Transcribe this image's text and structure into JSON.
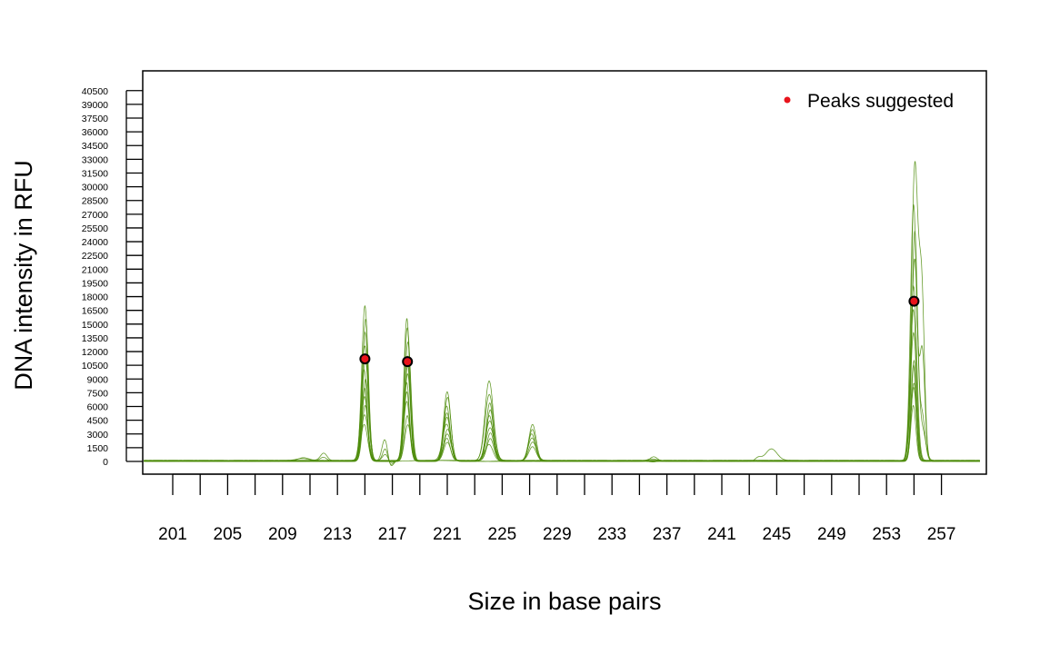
{
  "chart_data": {
    "type": "line",
    "title": "",
    "xlabel": "Size in base pairs",
    "ylabel": "DNA intensity in RFU",
    "xlim": [
      198,
      260
    ],
    "ylim": [
      0,
      40500
    ],
    "x_ticks": [
      201,
      205,
      209,
      213,
      217,
      221,
      225,
      229,
      233,
      237,
      241,
      245,
      249,
      253,
      257
    ],
    "y_tick_step": 1500,
    "x_minor_tick_step": 2,
    "grid": false,
    "legend": {
      "position": "top-right",
      "entries": [
        "Peaks suggested"
      ]
    },
    "colors": {
      "traces": "#4d8c0a",
      "peak_marker": "#e8141c",
      "marker_edge": "#000000"
    },
    "trace_peaks": [
      {
        "x": 215.0,
        "heights": [
          17000,
          15500,
          14000,
          12500,
          11000,
          10000,
          9000,
          8000,
          7000,
          6000,
          5000,
          4000
        ],
        "width": 0.22
      },
      {
        "x": 218.1,
        "heights": [
          15500,
          14500,
          13000,
          11500,
          10500,
          9500,
          8500,
          7500,
          6500,
          5000,
          4000
        ],
        "width": 0.22
      },
      {
        "x": 221.0,
        "heights": [
          7600,
          7000,
          6000,
          5200,
          4700,
          4000,
          3500,
          3000,
          2500,
          2000
        ],
        "width": 0.25
      },
      {
        "x": 224.1,
        "heights": [
          8700,
          7200,
          6300,
          5600,
          5000,
          4400,
          3600,
          3000,
          2400,
          1800
        ],
        "width": 0.27
      },
      {
        "x": 227.2,
        "heights": [
          4000,
          3500,
          3000,
          2500,
          2000,
          1500
        ],
        "width": 0.26
      },
      {
        "x": 216.5,
        "heights": [
          2600,
          1500,
          800
        ],
        "width": 0.2
      },
      {
        "x": 210.5,
        "heights": [
          300,
          200
        ],
        "width": 0.4
      },
      {
        "x": 212.0,
        "heights": [
          800,
          400
        ],
        "width": 0.25
      },
      {
        "x": 236.0,
        "heights": [
          900,
          500
        ],
        "width": 0.3
      },
      {
        "x": 244.6,
        "heights": [
          1300
        ],
        "width": 0.4
      },
      {
        "x": 243.7,
        "heights": [
          400
        ],
        "width": 0.25
      },
      {
        "x": 255.0,
        "heights": [
          31800,
          28000,
          25000,
          22000,
          19000,
          16500,
          14000,
          11000,
          10500,
          8500,
          8000,
          6000
        ],
        "width": 0.2
      },
      {
        "x": 255.6,
        "heights": [
          18500,
          12000,
          5000,
          3000
        ],
        "width": 0.2
      }
    ],
    "negative_dips": [
      {
        "x": 216.8,
        "depth": 1000,
        "width": 0.22
      },
      {
        "x": 236.0,
        "depth": 400,
        "width": 0.3
      }
    ],
    "peaks_suggested": [
      {
        "x": 215.0,
        "y": 11200
      },
      {
        "x": 218.1,
        "y": 10900
      },
      {
        "x": 255.0,
        "y": 17500
      }
    ]
  }
}
